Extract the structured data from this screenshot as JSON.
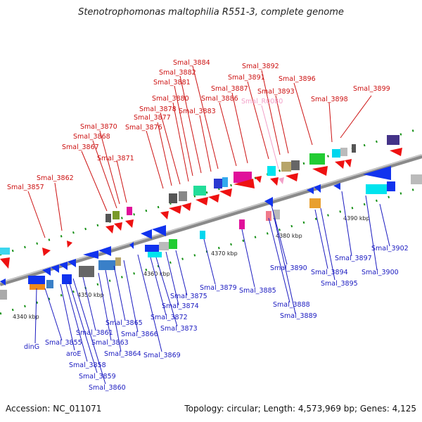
{
  "title": "Stenotrophomonas maltophilia R551-3, complete genome",
  "footer": {
    "accession": "Accession: NC_011071",
    "summary": "Topology: circular; Length: 4,573,969 bp; Genes: 4,125"
  },
  "kbp_ticks": [
    "4340 kbp",
    "4350 kbp",
    "4360 kbp",
    "4370 kbp",
    "4380 kbp",
    "4390 kbp"
  ],
  "top_labels": [
    "Smal_3857",
    "Smal_3862",
    "Smal_3867",
    "Smal_3868",
    "Smal_3870",
    "Smal_3871",
    "Smal_3876",
    "Smal_3877",
    "Smal_3878",
    "Smal_3880",
    "Smal_3881",
    "Smal_3882",
    "Smal_3884",
    "Smal_3883",
    "Smal_3886",
    "Smal_3887",
    "Smal_3891",
    "Smal_3892",
    "Smal_R0080",
    "Smal_3893",
    "Smal_3896",
    "Smal_3898",
    "Smal_3899"
  ],
  "bottom_labels": [
    "dinG",
    "Smal_3855",
    "aroE",
    "Smal_3858",
    "Smal_3859",
    "Smal_3860",
    "Smal_3861",
    "Smal_3863",
    "Smal_3864",
    "Smal_3865",
    "Smal_3866",
    "Smal_3869",
    "Smal_3872",
    "Smal_3873",
    "Smal_3874",
    "Smal_3875",
    "Smal_3879",
    "Smal_3885",
    "Smal_3888",
    "Smal_3889",
    "Smal_3890",
    "Smal_3894",
    "Smal_3895",
    "Smal_3897",
    "Smal_3900",
    "Smal_3902"
  ],
  "colors": {
    "forward_label": "#cc1111",
    "reverse_label": "#1a1ac0",
    "rna_label": "#f2a0c8",
    "forward_gene": "#ee1111",
    "reverse_gene": "#1133ee",
    "backbone": "#888888",
    "tick": "#118811"
  }
}
